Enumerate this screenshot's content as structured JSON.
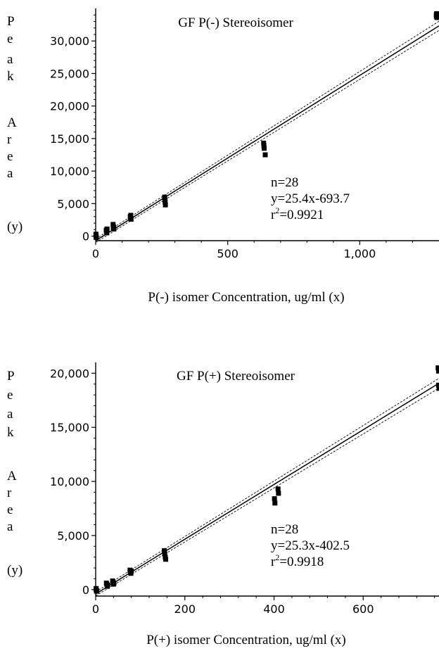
{
  "chart_data": [
    {
      "type": "scatter",
      "title": "GF P(-) Stereoisomer",
      "xlabel": "P(-) isomer Concentration, ug/ml (x)",
      "ylabel_letters": [
        "P",
        "e",
        "a",
        "k",
        "A",
        "r",
        "e",
        "a",
        "(y)"
      ],
      "xlim": [
        0,
        1300
      ],
      "ylim": [
        -700,
        35000
      ],
      "x_ticks": [
        0,
        500,
        1000
      ],
      "x_tick_labels": [
        "0",
        "500",
        "1,000"
      ],
      "y_ticks": [
        0,
        5000,
        10000,
        15000,
        20000,
        25000,
        30000
      ],
      "y_tick_labels": [
        "0",
        "5,000",
        "10,000",
        "15,000",
        "20,000",
        "25,000",
        "30,000"
      ],
      "grid": false,
      "stats": [
        "n=28",
        "y=25.4x-693.7",
        "r2=0.9921"
      ],
      "regression": {
        "slope": 25.4,
        "intercept": -693.7,
        "r2": 0.9921,
        "n": 28
      },
      "confidence_offset": 700,
      "series": [
        {
          "x": [
            1,
            1,
            2,
            2,
            40,
            41,
            42,
            43,
            66,
            67,
            68,
            69,
            131,
            132,
            133,
            134,
            261,
            262,
            263,
            264,
            636,
            637,
            638,
            642,
            1290,
            1290,
            1291,
            1292
          ],
          "y": [
            300,
            100,
            -100,
            -200,
            900,
            700,
            500,
            1100,
            1800,
            1500,
            1300,
            1100,
            3000,
            2800,
            3200,
            2600,
            6000,
            5600,
            5200,
            4800,
            14300,
            13900,
            13500,
            12500,
            34000,
            33800,
            34200,
            33600
          ]
        }
      ]
    },
    {
      "type": "scatter",
      "title": "GF P(+) Stereoisomer",
      "xlabel": "P(+) isomer Concentration, ug/ml (x)",
      "ylabel_letters": [
        "P",
        "e",
        "a",
        "k",
        "A",
        "r",
        "e",
        "a",
        "(y)"
      ],
      "xlim": [
        0,
        770
      ],
      "ylim": [
        -600,
        21000
      ],
      "x_ticks": [
        0,
        200,
        400,
        600
      ],
      "x_tick_labels": [
        "0",
        "200",
        "400",
        "600"
      ],
      "y_ticks": [
        0,
        5000,
        10000,
        15000,
        20000
      ],
      "y_tick_labels": [
        "0",
        "5,000",
        "10,000",
        "15,000",
        "20,000"
      ],
      "grid": false,
      "stats": [
        "n=28",
        "y=25.3x-402.5",
        "r2=0.9918"
      ],
      "regression": {
        "slope": 25.3,
        "intercept": -402.5,
        "r2": 0.9918,
        "n": 28
      },
      "confidence_offset": 450,
      "series": [
        {
          "x": [
            1,
            1,
            2,
            2,
            24,
            25,
            26,
            27,
            38,
            39,
            40,
            41,
            77,
            78,
            79,
            80,
            154,
            155,
            156,
            157,
            401,
            402,
            409,
            410,
            768,
            769,
            769,
            770
          ],
          "y": [
            100,
            0,
            -100,
            -150,
            600,
            500,
            300,
            400,
            800,
            700,
            500,
            600,
            1800,
            1600,
            1500,
            1700,
            3600,
            3300,
            3000,
            2800,
            8400,
            8000,
            9300,
            8900,
            20500,
            20200,
            18900,
            18600
          ]
        }
      ]
    }
  ]
}
